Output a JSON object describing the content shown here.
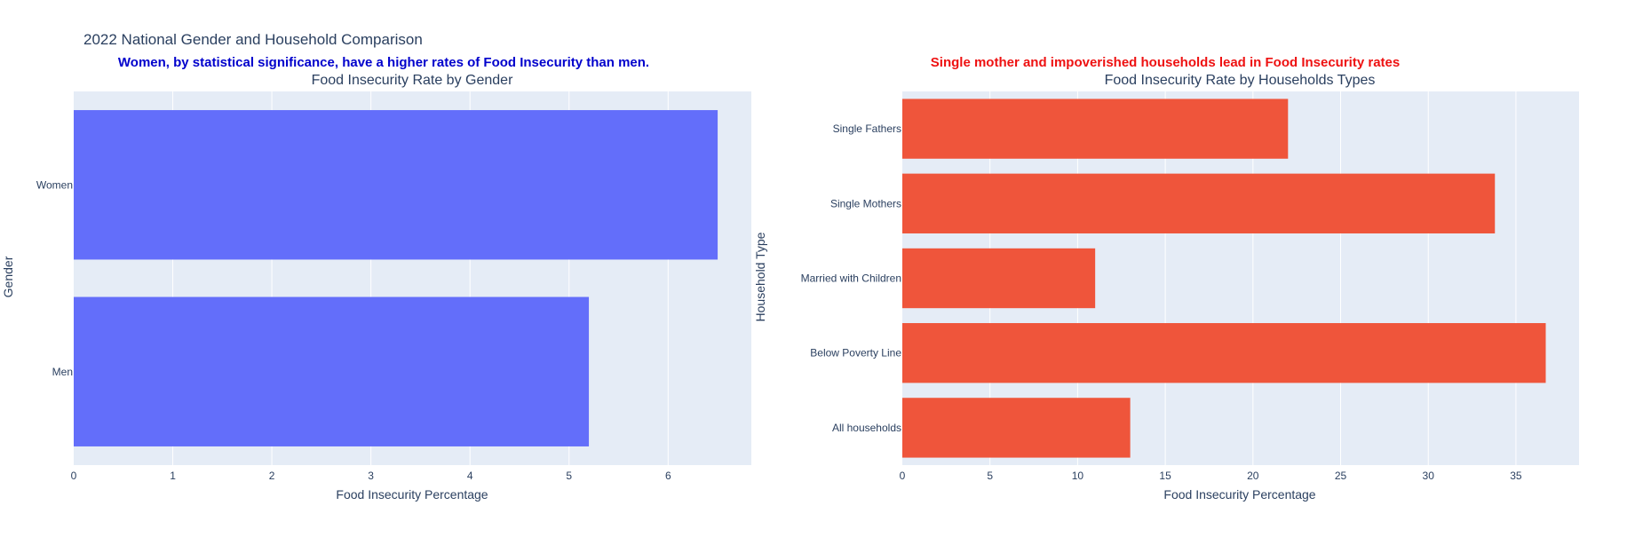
{
  "figure": {
    "title": "2022 National Gender and Household Comparison",
    "annotation_left": "Women, by statistical significance, have a higher rates of Food Insecurity than men.",
    "annotation_right": "Single mother and impoverished households lead in Food Insecurity rates",
    "annotation_left_color": "#0000cc",
    "annotation_right_color": "#ee1111",
    "plot_bg": "#e5ecf6",
    "grid_color": "#ffffff"
  },
  "chart_data": [
    {
      "type": "bar",
      "orientation": "horizontal",
      "title": "Food Insecurity Rate by Gender",
      "categories": [
        "Men",
        "Women"
      ],
      "values": [
        5.2,
        6.5
      ],
      "xlabel": "Food Insecurity Percentage",
      "ylabel": "Gender",
      "xlim": [
        0,
        6.84
      ],
      "xticks": [
        0,
        1,
        2,
        3,
        4,
        5,
        6
      ],
      "color": "#636efa",
      "grid": true
    },
    {
      "type": "bar",
      "orientation": "horizontal",
      "title": "Food Insecurity Rate by Households Types",
      "categories": [
        "All households",
        "Below Poverty Line",
        "Married with Children",
        "Single Mothers",
        "Single Fathers"
      ],
      "values": [
        13.0,
        36.7,
        11.0,
        33.8,
        22.0
      ],
      "xlabel": "Food Insecurity Percentage",
      "ylabel": "Household Type",
      "xlim": [
        0,
        38.6
      ],
      "xticks": [
        0,
        5,
        10,
        15,
        20,
        25,
        30,
        35
      ],
      "color": "#ef553b",
      "grid": true
    }
  ]
}
